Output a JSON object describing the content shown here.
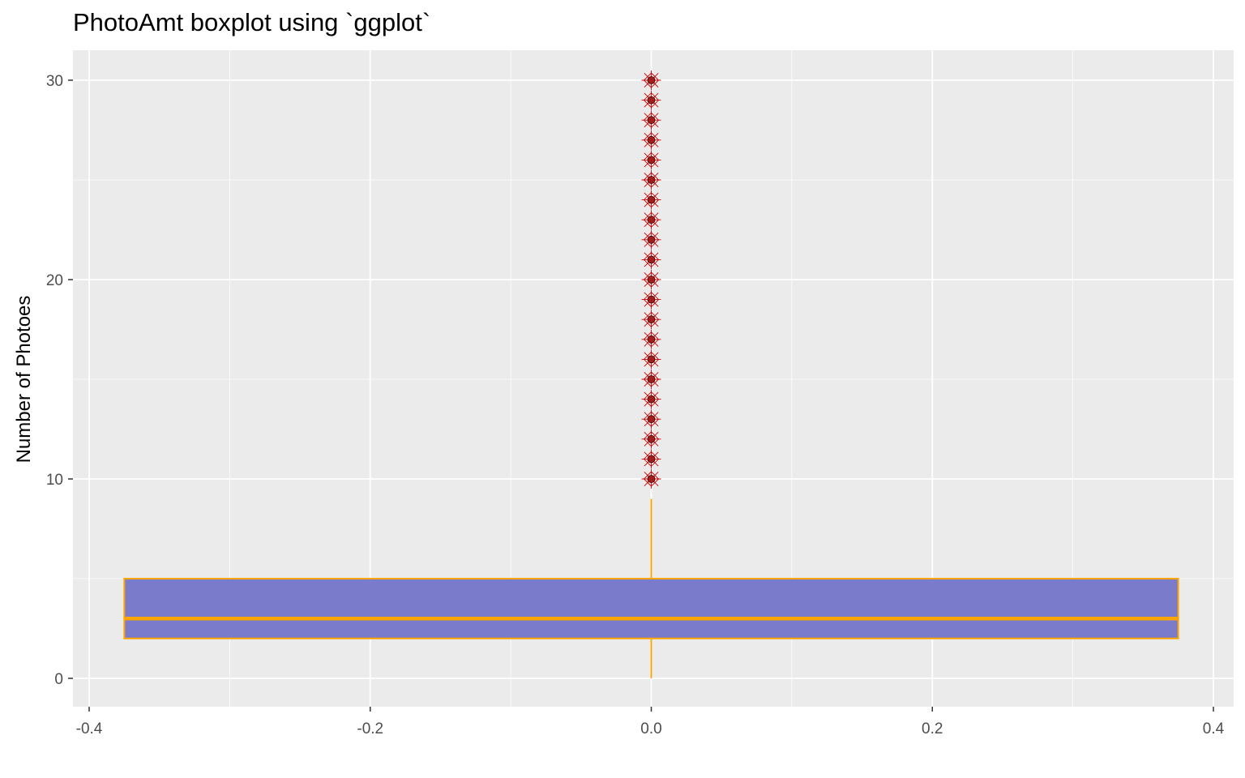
{
  "chart_data": {
    "type": "boxplot",
    "title": "PhotoAmt boxplot using `ggplot`",
    "xlabel": "",
    "ylabel": "Number of Photoes",
    "xlim": [
      -0.4,
      0.4
    ],
    "ylim": [
      0,
      30
    ],
    "x_ticks": [
      -0.4,
      -0.2,
      0.0,
      0.2,
      0.4
    ],
    "x_tick_labels": [
      "-0.4",
      "-0.2",
      "0.0",
      "0.2",
      "0.4"
    ],
    "y_ticks": [
      0,
      10,
      20,
      30
    ],
    "y_tick_labels": [
      "0",
      "10",
      "20",
      "30"
    ],
    "grid": true,
    "box": {
      "x_center": 0.0,
      "x_left": -0.375,
      "x_right": 0.375,
      "whisker_low": 0,
      "q1": 2,
      "median": 3,
      "q3": 5,
      "whisker_high": 9
    },
    "outliers": [
      10,
      11,
      12,
      13,
      14,
      15,
      16,
      17,
      18,
      19,
      20,
      21,
      22,
      23,
      24,
      25,
      26,
      27,
      28,
      29,
      30
    ],
    "colors": {
      "panel_background": "#ebebeb",
      "grid_major": "#ffffff",
      "box_fill": "#7b7bcc",
      "box_outline": "#ffa500",
      "outlier_point": "#a31d1d",
      "outlier_marker": "#cc0000"
    }
  }
}
